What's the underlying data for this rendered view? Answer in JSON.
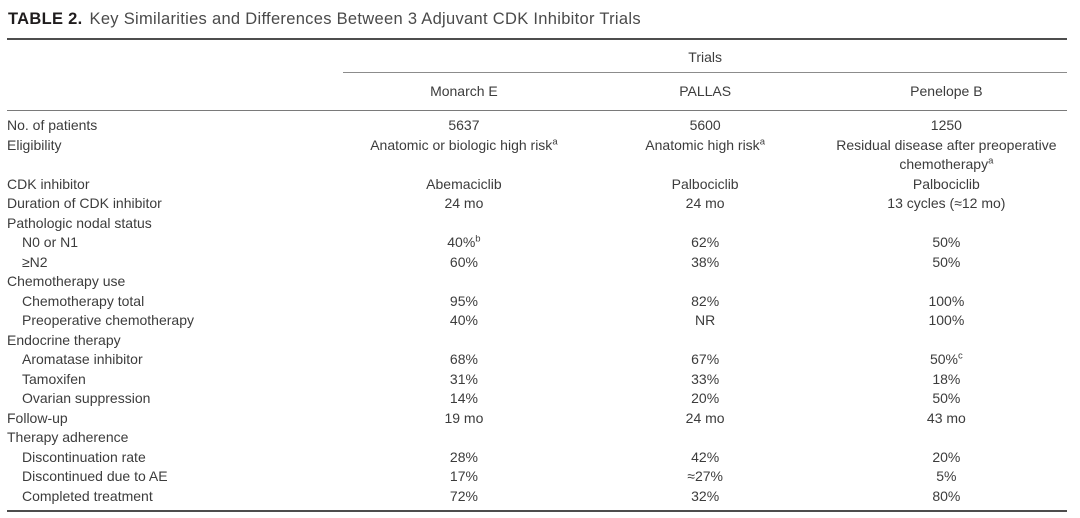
{
  "table": {
    "title_label": "TABLE 2.",
    "title_text": "Key Similarities and Differences Between 3 Adjuvant CDK Inhibitor Trials",
    "header": {
      "group_label": "Trials",
      "columns": [
        "Monarch E",
        "PALLAS",
        "Penelope B"
      ]
    },
    "rows": [
      {
        "label": "No. of patients",
        "indent": 0,
        "section": false,
        "values": [
          "5637",
          "5600",
          "1250"
        ]
      },
      {
        "label": "Eligibility",
        "indent": 0,
        "section": false,
        "values": [
          "Anatomic or biologic high risk^a",
          "Anatomic high risk^a",
          "Residual disease after preoperative chemotherapy^a"
        ]
      },
      {
        "label": "CDK inhibitor",
        "indent": 0,
        "section": false,
        "values": [
          "Abemaciclib",
          "Palbociclib",
          "Palbociclib"
        ]
      },
      {
        "label": "Duration of CDK inhibitor",
        "indent": 0,
        "section": false,
        "values": [
          "24 mo",
          "24 mo",
          "13 cycles (≈12 mo)"
        ]
      },
      {
        "label": "Pathologic nodal status",
        "indent": 0,
        "section": true,
        "values": [
          "",
          "",
          ""
        ]
      },
      {
        "label": "N0 or N1",
        "indent": 1,
        "section": false,
        "values": [
          "40%^b",
          "62%",
          "50%"
        ]
      },
      {
        "label": "≥N2",
        "indent": 1,
        "section": false,
        "values": [
          "60%",
          "38%",
          "50%"
        ]
      },
      {
        "label": "Chemotherapy use",
        "indent": 0,
        "section": true,
        "values": [
          "",
          "",
          ""
        ]
      },
      {
        "label": "Chemotherapy total",
        "indent": 1,
        "section": false,
        "values": [
          "95%",
          "82%",
          "100%"
        ]
      },
      {
        "label": "Preoperative chemotherapy",
        "indent": 1,
        "section": false,
        "values": [
          "40%",
          "NR",
          "100%"
        ]
      },
      {
        "label": "Endocrine therapy",
        "indent": 0,
        "section": true,
        "values": [
          "",
          "",
          ""
        ]
      },
      {
        "label": "Aromatase inhibitor",
        "indent": 1,
        "section": false,
        "values": [
          "68%",
          "67%",
          "50%^c"
        ]
      },
      {
        "label": "Tamoxifen",
        "indent": 1,
        "section": false,
        "values": [
          "31%",
          "33%",
          "18%"
        ]
      },
      {
        "label": "Ovarian suppression",
        "indent": 1,
        "section": false,
        "values": [
          "14%",
          "20%",
          "50%"
        ]
      },
      {
        "label": "Follow-up",
        "indent": 0,
        "section": false,
        "values": [
          "19 mo",
          "24 mo",
          "43 mo"
        ]
      },
      {
        "label": "Therapy adherence",
        "indent": 0,
        "section": true,
        "values": [
          "",
          "",
          ""
        ]
      },
      {
        "label": "Discontinuation rate",
        "indent": 1,
        "section": false,
        "values": [
          "28%",
          "42%",
          "20%"
        ]
      },
      {
        "label": "Discontinued due to AE",
        "indent": 1,
        "section": false,
        "values": [
          "17%",
          "≈27%",
          "5%"
        ]
      },
      {
        "label": "Completed treatment",
        "indent": 1,
        "section": false,
        "values": [
          "72%",
          "32%",
          "80%"
        ]
      }
    ]
  }
}
